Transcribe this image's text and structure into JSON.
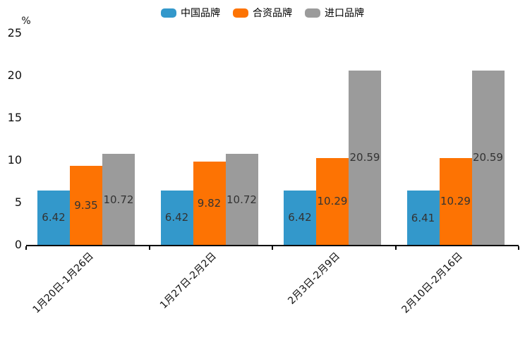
{
  "chart_data": {
    "type": "bar",
    "title": "",
    "unit_label": "%",
    "categories": [
      "1月20日-1月26日",
      "1月27日-2月2日",
      "2月3日-2月9日",
      "2月10日-2月16日"
    ],
    "series": [
      {
        "name": "中国品牌",
        "color": "#3398cb",
        "values": [
          6.42,
          6.42,
          6.42,
          6.41
        ]
      },
      {
        "name": "合资品牌",
        "color": "#fd7303",
        "values": [
          9.35,
          9.82,
          10.29,
          10.29
        ]
      },
      {
        "name": "进口品牌",
        "color": "#9b9b9b",
        "values": [
          10.72,
          10.72,
          20.59,
          20.59
        ]
      }
    ],
    "value_label_decimals": 2,
    "yticks": [
      0,
      5,
      10,
      15,
      20,
      25
    ],
    "ylim": [
      0,
      25
    ],
    "legend_position": "top",
    "legend_labels": [
      "中国品牌",
      "合资品牌",
      "进口品牌"
    ],
    "grid": false,
    "colors": {
      "axis_line": "#000000",
      "bar_value_label": "#333333",
      "tick_label": "#111111"
    }
  }
}
